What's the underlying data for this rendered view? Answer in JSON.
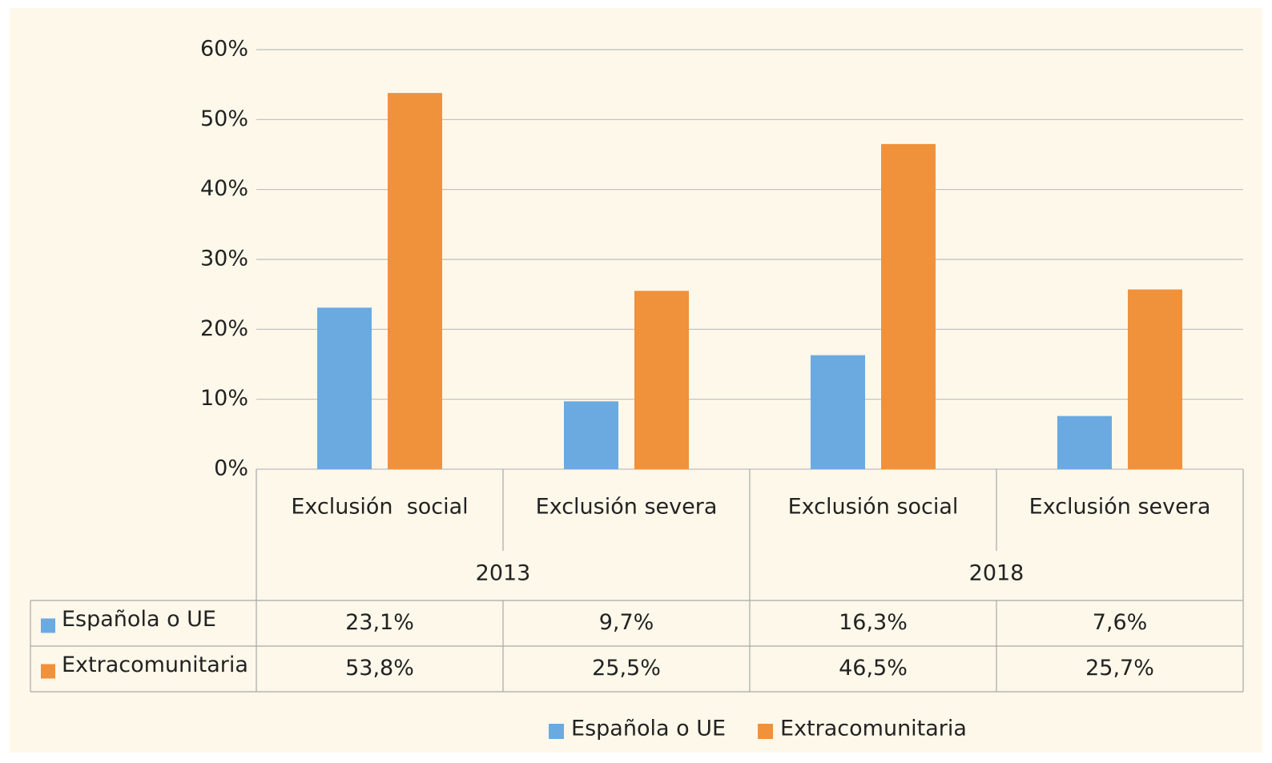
{
  "chart_data": {
    "type": "bar",
    "categories": [
      "Exclusión  social",
      "Exclusión severa",
      "Exclusión social",
      "Exclusión severa"
    ],
    "groups": [
      "2013",
      "2018"
    ],
    "series": [
      {
        "name": "Española o UE",
        "color": "#6aaae0",
        "values": [
          23.1,
          9.7,
          16.3,
          7.6
        ],
        "value_labels": [
          "23,1%",
          "9,7%",
          "16,3%",
          "7,6%"
        ]
      },
      {
        "name": "Extracomunitaria",
        "color": "#f0913c",
        "values": [
          53.8,
          25.5,
          46.5,
          25.7
        ],
        "value_labels": [
          "53,8%",
          "25,5%",
          "46,5%",
          "25,7%"
        ]
      }
    ],
    "ylim": [
      0,
      60
    ],
    "yticks": [
      {
        "value": 0,
        "label": "0%"
      },
      {
        "value": 10,
        "label": "10%"
      },
      {
        "value": 20,
        "label": "20%"
      },
      {
        "value": 30,
        "label": "30%"
      },
      {
        "value": 40,
        "label": "40%"
      },
      {
        "value": 50,
        "label": "50%"
      },
      {
        "value": 60,
        "label": "60%"
      }
    ],
    "grid": true,
    "legend": "bottom"
  }
}
